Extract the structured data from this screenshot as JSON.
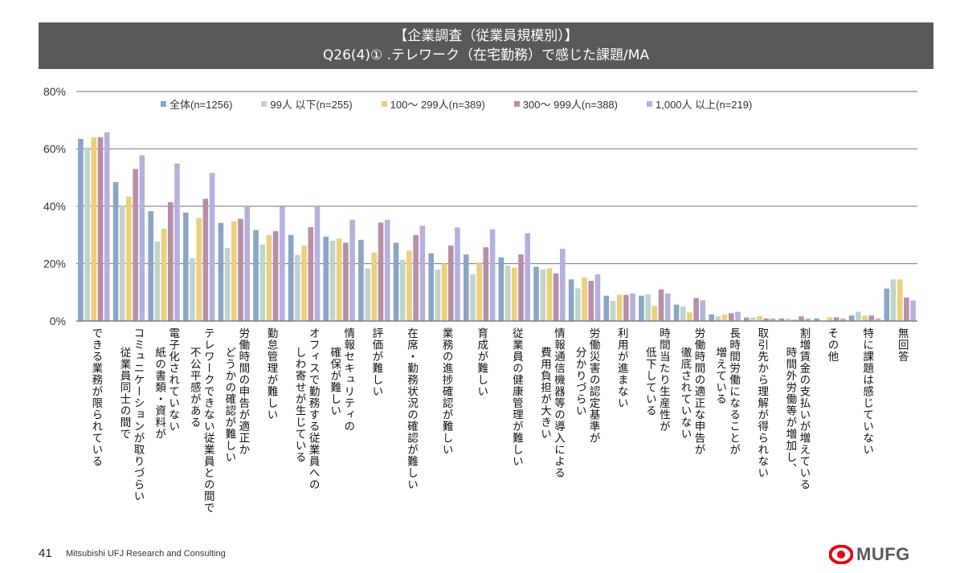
{
  "header": {
    "title_line1": "【企業調査（従業員規模別）】",
    "title_line2": "Q26(4)① .テレワーク（在宅勤務）で感じた課題/MA"
  },
  "chart_data": {
    "type": "bar",
    "title": "【企業調査（従業員規模別）】 Q26(4)① .テレワーク（在宅勤務）で感じた課題/MA",
    "xlabel": "",
    "ylabel": "",
    "ylim": [
      0,
      80
    ],
    "yticks": [
      0,
      20,
      40,
      60,
      80
    ],
    "ytick_labels": [
      "0%",
      "20%",
      "40%",
      "60%",
      "80%"
    ],
    "grid": true,
    "legend_position": "top",
    "categories": [
      [
        "できる業務が限られている"
      ],
      [
        "コミュニケーションが取りづらい",
        "従業員同士の間で"
      ],
      [
        "電子化されていない",
        "紙の書類・資料が"
      ],
      [
        "テレワークできない従業員との間で",
        "不公平感がある"
      ],
      [
        "労働時間の申告が適正か",
        "どうかの確認が難しい"
      ],
      [
        "勤怠管理が難しい"
      ],
      [
        "オフィスで勤務する従業員への",
        "しわ寄せが生じている"
      ],
      [
        "情報セキュリティの",
        "確保が難しい"
      ],
      [
        "評価が難しい"
      ],
      [
        "在席・勤務状況の確認が難しい"
      ],
      [
        "業務の進捗確認が難しい"
      ],
      [
        "育成が難しい"
      ],
      [
        "従業員の健康管理が難しい"
      ],
      [
        "情報通信機器等の導入による",
        "費用負担が大きい"
      ],
      [
        "労働災害の認定基準が",
        "分かりづらい"
      ],
      [
        "利用が進まない"
      ],
      [
        "時間当たり生産性が",
        "低下している"
      ],
      [
        "労働時間の適正な申告が",
        "徹底されていない"
      ],
      [
        "長時間労働になることが",
        "増えている"
      ],
      [
        "取引先から理解が得られない"
      ],
      [
        "割増賃金の支払いが増えている",
        "時間外労働等が増加し、"
      ],
      [
        "その他"
      ],
      [
        "特に課題は感じていない"
      ],
      [
        "無回答"
      ]
    ],
    "series": [
      {
        "name": "全体(n=1256)",
        "color": "#8AA5C5",
        "values": [
          63.5,
          48.4,
          38.3,
          37.8,
          34.2,
          31.7,
          30.0,
          29.4,
          28.3,
          27.3,
          23.6,
          23.2,
          22.2,
          18.9,
          14.5,
          8.8,
          8.8,
          5.7,
          2.3,
          1.2,
          0.9,
          0.9,
          1.9,
          11.3
        ]
      },
      {
        "name": "99人以下(n=255)",
        "color": "#BFD5CB",
        "values": [
          60.5,
          40.3,
          27.7,
          21.9,
          25.5,
          26.7,
          23.0,
          28.0,
          18.3,
          21.3,
          17.9,
          16.3,
          19.3,
          18.0,
          11.4,
          7.0,
          9.3,
          5.0,
          1.6,
          1.2,
          0.9,
          0.0,
          3.2,
          14.5
        ]
      },
      {
        "name": "100～299人(n=389)",
        "color": "#EDCF7C",
        "values": [
          64.0,
          43.4,
          32.2,
          35.9,
          34.7,
          30.0,
          26.3,
          28.7,
          23.9,
          24.6,
          20.0,
          20.4,
          18.6,
          18.3,
          15.2,
          9.1,
          5.3,
          3.0,
          2.2,
          1.7,
          0.6,
          1.3,
          1.9,
          14.5
        ]
      },
      {
        "name": "300～999人(n=388)",
        "color": "#B88FA6",
        "values": [
          64.0,
          53.0,
          41.4,
          42.6,
          35.6,
          31.3,
          32.7,
          27.3,
          34.3,
          30.0,
          26.3,
          25.7,
          23.2,
          16.6,
          14.0,
          9.1,
          11.0,
          8.0,
          2.7,
          0.9,
          1.6,
          1.3,
          1.9,
          8.2
        ]
      },
      {
        "name": "1,000人以上(n=219)",
        "color": "#B4B2DD",
        "values": [
          65.8,
          57.7,
          54.9,
          51.6,
          40.0,
          39.8,
          40.3,
          35.3,
          35.3,
          33.2,
          32.6,
          32.0,
          30.6,
          25.2,
          16.3,
          9.6,
          9.6,
          7.2,
          3.2,
          0.9,
          0.9,
          0.9,
          0.9,
          7.2
        ]
      }
    ]
  },
  "legend": [
    {
      "label": "全体(n=1256)",
      "color": "#8AA5C5"
    },
    {
      "label": "99人 以下(n=255)",
      "color": "#BFD5CB"
    },
    {
      "label": "100～ 299人(n=389)",
      "color": "#EDCF7C"
    },
    {
      "label": "300～ 999人(n=388)",
      "color": "#B88FA6"
    },
    {
      "label": "1,000人 以上(n=219)",
      "color": "#B4B2DD"
    }
  ],
  "footer": {
    "page_number": "41",
    "company": "Mitsubishi UFJ Research and Consulting",
    "logo_text": "MUFG",
    "logo_color": "#E60012"
  }
}
